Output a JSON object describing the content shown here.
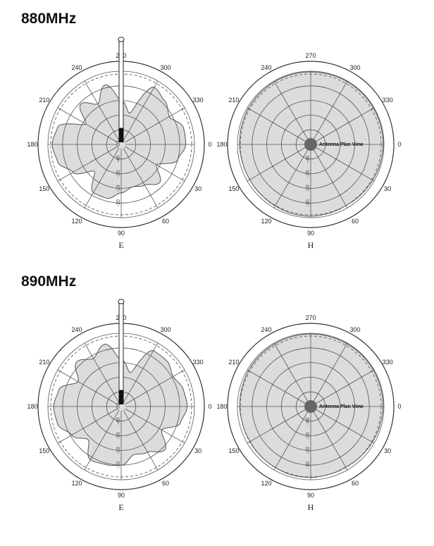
{
  "sections": [
    {
      "title": "880MHz",
      "charts": [
        {
          "kind": "E",
          "label": "E",
          "angle_labels": [
            "270",
            "300",
            "330",
            "0",
            "30",
            "60",
            "90",
            "120",
            "150",
            "180",
            "210",
            "240"
          ],
          "radial_labels": [
            "-10",
            "-20",
            "-30",
            "-40",
            "-50"
          ],
          "show_antenna": true
        },
        {
          "kind": "H",
          "label": "H",
          "angle_labels": [
            "270",
            "300",
            "330",
            "0",
            "30",
            "60",
            "90",
            "120",
            "150",
            "180",
            "210",
            "240"
          ],
          "radial_labels": [
            "-10",
            "-20",
            "-30",
            "-40",
            "-50"
          ],
          "plan_label": "Antenna Plan View"
        }
      ]
    },
    {
      "title": "890MHz",
      "charts": [
        {
          "kind": "E",
          "label": "E",
          "angle_labels": [
            "270",
            "300",
            "330",
            "0",
            "30",
            "60",
            "90",
            "120",
            "150",
            "180",
            "210",
            "240"
          ],
          "radial_labels": [
            "-10",
            "-20",
            "-30",
            "-40",
            "-50"
          ],
          "show_antenna": true
        },
        {
          "kind": "H",
          "label": "H",
          "angle_labels": [
            "270",
            "300",
            "330",
            "0",
            "30",
            "60",
            "90",
            "120",
            "150",
            "180",
            "210",
            "240"
          ],
          "radial_labels": [
            "-10",
            "-20",
            "-30",
            "-40",
            "-50"
          ],
          "plan_label": "Antenna Plan View"
        }
      ]
    }
  ],
  "chart_data": [
    {
      "type": "polar",
      "frequency": "880MHz",
      "plane": "E",
      "r_unit": "dB",
      "rlim": [
        -50,
        0
      ],
      "theta": [
        0,
        15,
        30,
        45,
        60,
        75,
        90,
        105,
        120,
        135,
        150,
        165,
        180,
        195,
        210,
        225,
        240,
        255,
        270,
        285,
        300,
        315,
        330,
        345
      ],
      "r": [
        -6,
        -10,
        -22,
        -13,
        -18,
        -20,
        -17,
        -12,
        -12,
        -24,
        -12,
        -5,
        -3,
        -5,
        -22,
        -11,
        -18,
        -8,
        -20,
        -28,
        -5,
        -8,
        -12,
        -6
      ],
      "fill_color": "#dcdcdc",
      "reference_color": "#5a5a7a"
    },
    {
      "type": "polar",
      "frequency": "880MHz",
      "plane": "H",
      "r_unit": "dB",
      "rlim": [
        -50,
        0
      ],
      "theta": [
        0,
        15,
        30,
        45,
        60,
        75,
        90,
        105,
        120,
        135,
        150,
        165,
        180,
        195,
        210,
        225,
        240,
        255,
        270,
        285,
        300,
        315,
        330,
        345
      ],
      "r": [
        -0.5,
        -0.8,
        -1.2,
        -1.5,
        -1.8,
        -1.4,
        -1.0,
        -1.1,
        -1.5,
        -1.8,
        -2.0,
        -1.8,
        -1.5,
        -1.2,
        -1.0,
        -0.8,
        -0.6,
        -0.5,
        -0.5,
        -0.5,
        -0.4,
        -0.4,
        -0.5,
        -0.5
      ],
      "fill_color": "#dcdcdc",
      "reference_color": "#5a5a7a"
    },
    {
      "type": "polar",
      "frequency": "890MHz",
      "plane": "E",
      "r_unit": "dB",
      "rlim": [
        -50,
        0
      ],
      "theta": [
        0,
        15,
        30,
        45,
        60,
        75,
        90,
        105,
        120,
        135,
        150,
        165,
        180,
        195,
        210,
        225,
        240,
        255,
        270,
        285,
        300,
        315,
        330,
        345
      ],
      "r": [
        -5,
        -8,
        -18,
        -8,
        -14,
        -16,
        -10,
        -9,
        -8,
        -18,
        -11,
        -5,
        -4,
        -6,
        -16,
        -7,
        -12,
        -6,
        -18,
        -26,
        -6,
        -6,
        -9,
        -6
      ],
      "fill_color": "#dcdcdc",
      "reference_color": "#5a5a7a"
    },
    {
      "type": "polar",
      "frequency": "890MHz",
      "plane": "H",
      "r_unit": "dB",
      "rlim": [
        -50,
        0
      ],
      "theta": [
        0,
        15,
        30,
        45,
        60,
        75,
        90,
        105,
        120,
        135,
        150,
        165,
        180,
        195,
        210,
        225,
        240,
        255,
        270,
        285,
        300,
        315,
        330,
        345
      ],
      "r": [
        -0.6,
        -1.0,
        -1.4,
        -1.8,
        -2.2,
        -2.0,
        -1.6,
        -1.5,
        -1.8,
        -2.0,
        -2.2,
        -2.0,
        -1.6,
        -1.4,
        -1.0,
        -0.8,
        -0.7,
        -0.6,
        -0.5,
        -0.5,
        -0.5,
        -0.5,
        -0.5,
        -0.6
      ],
      "fill_color": "#dcdcdc",
      "reference_color": "#5a5a7a"
    }
  ]
}
